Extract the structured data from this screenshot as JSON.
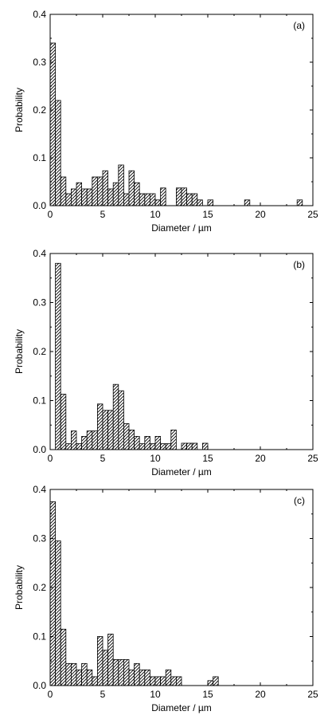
{
  "figure": {
    "colors": {
      "axis": "#000000",
      "bar_stroke": "#000000",
      "hatch": "#000000",
      "background": "#ffffff"
    }
  },
  "chart_data": [
    {
      "type": "bar",
      "panel_label": "(a)",
      "xlabel": "Diameter / µm",
      "ylabel": "Probability",
      "xlim": [
        0,
        25
      ],
      "ylim": [
        0,
        0.4
      ],
      "xticks": [
        0,
        5,
        10,
        15,
        20,
        25
      ],
      "yticks": [
        0.0,
        0.1,
        0.2,
        0.3,
        0.4
      ],
      "bin_width": 0.5,
      "bars": [
        {
          "x": 0.25,
          "y": 0.34
        },
        {
          "x": 0.75,
          "y": 0.22
        },
        {
          "x": 1.25,
          "y": 0.06
        },
        {
          "x": 1.75,
          "y": 0.025
        },
        {
          "x": 2.25,
          "y": 0.035
        },
        {
          "x": 2.75,
          "y": 0.048
        },
        {
          "x": 3.25,
          "y": 0.035
        },
        {
          "x": 3.75,
          "y": 0.035
        },
        {
          "x": 4.25,
          "y": 0.06
        },
        {
          "x": 4.75,
          "y": 0.06
        },
        {
          "x": 5.25,
          "y": 0.073
        },
        {
          "x": 5.75,
          "y": 0.035
        },
        {
          "x": 6.25,
          "y": 0.048
        },
        {
          "x": 6.75,
          "y": 0.085
        },
        {
          "x": 7.25,
          "y": 0.025
        },
        {
          "x": 7.75,
          "y": 0.073
        },
        {
          "x": 8.25,
          "y": 0.048
        },
        {
          "x": 8.75,
          "y": 0.025
        },
        {
          "x": 9.25,
          "y": 0.025
        },
        {
          "x": 9.75,
          "y": 0.025
        },
        {
          "x": 10.25,
          "y": 0.012
        },
        {
          "x": 10.75,
          "y": 0.037
        },
        {
          "x": 12.25,
          "y": 0.037
        },
        {
          "x": 12.75,
          "y": 0.037
        },
        {
          "x": 13.25,
          "y": 0.025
        },
        {
          "x": 13.75,
          "y": 0.025
        },
        {
          "x": 14.25,
          "y": 0.012
        },
        {
          "x": 15.25,
          "y": 0.012
        },
        {
          "x": 18.75,
          "y": 0.012
        },
        {
          "x": 23.75,
          "y": 0.012
        }
      ]
    },
    {
      "type": "bar",
      "panel_label": "(b)",
      "xlabel": "Diameter / µm",
      "ylabel": "Probability",
      "xlim": [
        0,
        25
      ],
      "ylim": [
        0,
        0.4
      ],
      "xticks": [
        0,
        5,
        10,
        15,
        20,
        25
      ],
      "yticks": [
        0.0,
        0.1,
        0.2,
        0.3,
        0.4
      ],
      "bin_width": 0.5,
      "bars": [
        {
          "x": 0.75,
          "y": 0.38
        },
        {
          "x": 1.25,
          "y": 0.113
        },
        {
          "x": 1.75,
          "y": 0.012
        },
        {
          "x": 2.25,
          "y": 0.038
        },
        {
          "x": 2.75,
          "y": 0.012
        },
        {
          "x": 3.25,
          "y": 0.027
        },
        {
          "x": 3.75,
          "y": 0.038
        },
        {
          "x": 4.25,
          "y": 0.038
        },
        {
          "x": 4.75,
          "y": 0.093
        },
        {
          "x": 5.25,
          "y": 0.08
        },
        {
          "x": 5.75,
          "y": 0.08
        },
        {
          "x": 6.25,
          "y": 0.133
        },
        {
          "x": 6.75,
          "y": 0.12
        },
        {
          "x": 7.25,
          "y": 0.053
        },
        {
          "x": 7.75,
          "y": 0.04
        },
        {
          "x": 8.25,
          "y": 0.027
        },
        {
          "x": 8.75,
          "y": 0.012
        },
        {
          "x": 9.25,
          "y": 0.027
        },
        {
          "x": 9.75,
          "y": 0.012
        },
        {
          "x": 10.25,
          "y": 0.027
        },
        {
          "x": 10.75,
          "y": 0.012
        },
        {
          "x": 11.25,
          "y": 0.012
        },
        {
          "x": 11.75,
          "y": 0.04
        },
        {
          "x": 12.75,
          "y": 0.013
        },
        {
          "x": 13.25,
          "y": 0.013
        },
        {
          "x": 13.75,
          "y": 0.013
        },
        {
          "x": 14.75,
          "y": 0.013
        }
      ]
    },
    {
      "type": "bar",
      "panel_label": "(c)",
      "xlabel": "Diameter / µm",
      "ylabel": "Probability",
      "xlim": [
        0,
        25
      ],
      "ylim": [
        0,
        0.4
      ],
      "xticks": [
        0,
        5,
        10,
        15,
        20,
        25
      ],
      "yticks": [
        0.0,
        0.1,
        0.2,
        0.3,
        0.4
      ],
      "bin_width": 0.5,
      "bars": [
        {
          "x": 0.25,
          "y": 0.375
        },
        {
          "x": 0.75,
          "y": 0.295
        },
        {
          "x": 1.25,
          "y": 0.115
        },
        {
          "x": 1.75,
          "y": 0.045
        },
        {
          "x": 2.25,
          "y": 0.045
        },
        {
          "x": 2.75,
          "y": 0.032
        },
        {
          "x": 3.25,
          "y": 0.045
        },
        {
          "x": 3.75,
          "y": 0.032
        },
        {
          "x": 4.25,
          "y": 0.018
        },
        {
          "x": 4.75,
          "y": 0.1
        },
        {
          "x": 5.25,
          "y": 0.072
        },
        {
          "x": 5.75,
          "y": 0.105
        },
        {
          "x": 6.25,
          "y": 0.053
        },
        {
          "x": 6.75,
          "y": 0.053
        },
        {
          "x": 7.25,
          "y": 0.053
        },
        {
          "x": 7.75,
          "y": 0.032
        },
        {
          "x": 8.25,
          "y": 0.045
        },
        {
          "x": 8.75,
          "y": 0.032
        },
        {
          "x": 9.25,
          "y": 0.032
        },
        {
          "x": 9.75,
          "y": 0.018
        },
        {
          "x": 10.25,
          "y": 0.018
        },
        {
          "x": 10.75,
          "y": 0.018
        },
        {
          "x": 11.25,
          "y": 0.032
        },
        {
          "x": 11.75,
          "y": 0.018
        },
        {
          "x": 12.25,
          "y": 0.018
        },
        {
          "x": 15.25,
          "y": 0.01
        },
        {
          "x": 15.75,
          "y": 0.018
        }
      ]
    }
  ]
}
